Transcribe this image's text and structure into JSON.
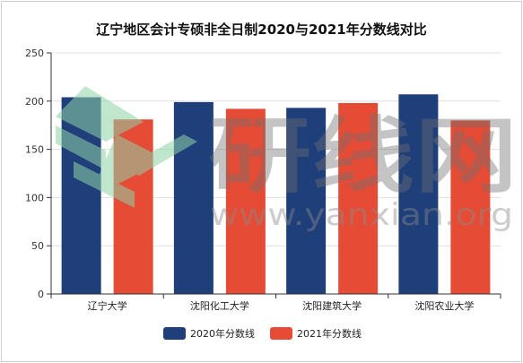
{
  "chart_data": {
    "type": "bar",
    "title": "辽宁地区会计专硕非全日制2020与2021年分数线对比",
    "categories": [
      "辽宁大学",
      "沈阳化工大学",
      "沈阳建筑大学",
      "沈阳农业大学"
    ],
    "series": [
      {
        "name": "2020年分数线",
        "values": [
          204,
          199,
          193,
          207
        ],
        "color": "#1f3f7a"
      },
      {
        "name": "2021年分数线",
        "values": [
          181,
          192,
          198,
          180
        ],
        "color": "#e54b35"
      }
    ],
    "ylim": [
      0,
      250
    ],
    "yticks": [
      0,
      50,
      100,
      150,
      200,
      250
    ],
    "grid": true,
    "legend_position": "bottom"
  },
  "watermark": {
    "text_large": "研线网",
    "text_url": "www.yanxian.org"
  }
}
